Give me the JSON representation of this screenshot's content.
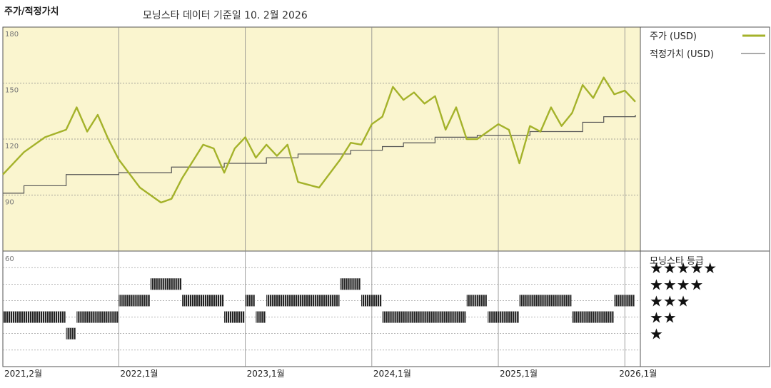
{
  "header": {
    "title": "주가/적정가치",
    "subtitle": "모닝스타 데이터 기준일 10. 2월 2026"
  },
  "legend": {
    "price_label": "주가 (USD)",
    "fair_value_label": "적정가치 (USD)",
    "rating_title": "모닝스타 등급"
  },
  "colors": {
    "price_line": "#a4b22a",
    "fair_value_line": "#555555",
    "panel_bg": "#faf5cf",
    "rating_bar": "#222222",
    "grid": "#888888"
  },
  "chart_data": [
    {
      "type": "line",
      "title": "주가/적정가치",
      "ylim": [
        60,
        180
      ],
      "y_ticks": [
        "180",
        "150",
        "120",
        "90"
      ],
      "y_tick_values": [
        180,
        150,
        120,
        90
      ],
      "x_tick_labels": [
        "2021,2월",
        "2022,1월",
        "2023,1월",
        "2024,1월",
        "2025,1월",
        "2026,1월"
      ],
      "x_tick_dates": [
        "2021-02",
        "2022-01",
        "2023-01",
        "2024-01",
        "2025-01",
        "2026-01"
      ],
      "x_range": [
        "2021-02",
        "2026-02"
      ],
      "grid": true,
      "series": [
        {
          "name": "주가 (USD)",
          "x": [
            "2021-02",
            "2021-04",
            "2021-06",
            "2021-08",
            "2021-09",
            "2021-10",
            "2021-11",
            "2021-12",
            "2022-01",
            "2022-03",
            "2022-05",
            "2022-06",
            "2022-07",
            "2022-09",
            "2022-10",
            "2022-11",
            "2022-12",
            "2023-01",
            "2023-02",
            "2023-03",
            "2023-04",
            "2023-05",
            "2023-06",
            "2023-08",
            "2023-10",
            "2023-11",
            "2023-12",
            "2024-01",
            "2024-02",
            "2024-03",
            "2024-04",
            "2024-05",
            "2024-06",
            "2024-07",
            "2024-08",
            "2024-09",
            "2024-10",
            "2024-11",
            "2024-12",
            "2025-01",
            "2025-02",
            "2025-03",
            "2025-04",
            "2025-05",
            "2025-06",
            "2025-07",
            "2025-08",
            "2025-09",
            "2025-10",
            "2025-11",
            "2025-12",
            "2026-01",
            "2026-02"
          ],
          "values": [
            101,
            113,
            121,
            125,
            137,
            124,
            133,
            120,
            109,
            94,
            86,
            88,
            99,
            117,
            115,
            102,
            115,
            121,
            110,
            117,
            111,
            117,
            97,
            94,
            109,
            118,
            117,
            128,
            132,
            148,
            141,
            145,
            139,
            143,
            125,
            137,
            120,
            120,
            124,
            128,
            125,
            107,
            127,
            124,
            137,
            127,
            134,
            149,
            142,
            153,
            144,
            146,
            140
          ]
        },
        {
          "name": "적정가치 (USD)",
          "x": [
            "2021-02",
            "2021-04",
            "2021-08",
            "2022-01",
            "2022-06",
            "2022-11",
            "2023-03",
            "2023-06",
            "2023-11",
            "2024-02",
            "2024-04",
            "2024-07",
            "2024-11",
            "2025-04",
            "2025-09",
            "2025-11",
            "2026-02"
          ],
          "values": [
            91,
            95,
            101,
            102,
            105,
            107,
            110,
            112,
            114,
            116,
            118,
            121,
            122,
            124,
            129,
            132,
            133
          ]
        }
      ]
    },
    {
      "type": "heatmap",
      "title": "모닝스타 등급",
      "ylabel": "",
      "y_ticks": [
        "★★★★★",
        "★★★★",
        "★★★",
        "★★",
        "★"
      ],
      "y_tick_value": "60",
      "segments": [
        {
          "start": "2021-02",
          "end": "2021-08",
          "stars": 2
        },
        {
          "start": "2021-08",
          "end": "2021-09",
          "stars": 1
        },
        {
          "start": "2021-09",
          "end": "2022-01",
          "stars": 2
        },
        {
          "start": "2022-01",
          "end": "2022-04",
          "stars": 3
        },
        {
          "start": "2022-04",
          "end": "2022-07",
          "stars": 4
        },
        {
          "start": "2022-07",
          "end": "2022-11",
          "stars": 3
        },
        {
          "start": "2022-11",
          "end": "2023-01",
          "stars": 2
        },
        {
          "start": "2023-01",
          "end": "2023-02",
          "stars": 3
        },
        {
          "start": "2023-02",
          "end": "2023-03",
          "stars": 2
        },
        {
          "start": "2023-03",
          "end": "2023-10",
          "stars": 3
        },
        {
          "start": "2023-10",
          "end": "2023-12",
          "stars": 4
        },
        {
          "start": "2023-12",
          "end": "2024-02",
          "stars": 3
        },
        {
          "start": "2024-02",
          "end": "2024-10",
          "stars": 2
        },
        {
          "start": "2024-10",
          "end": "2024-12",
          "stars": 3
        },
        {
          "start": "2024-12",
          "end": "2025-03",
          "stars": 2
        },
        {
          "start": "2025-03",
          "end": "2025-08",
          "stars": 3
        },
        {
          "start": "2025-08",
          "end": "2025-12",
          "stars": 2
        },
        {
          "start": "2025-12",
          "end": "2026-02",
          "stars": 3
        }
      ]
    }
  ]
}
